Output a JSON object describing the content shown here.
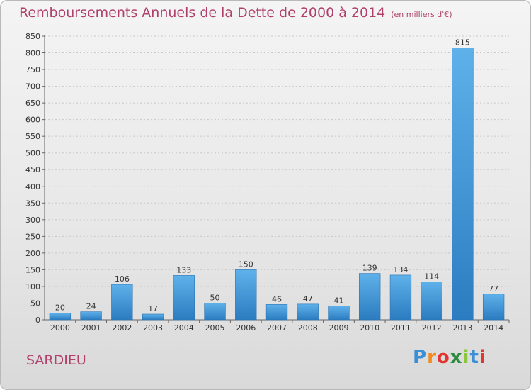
{
  "title": "Remboursements Annuels de la Dette de 2000 à 2014",
  "unit_note": "(en milliers d'€)",
  "commune": "SARDIEU",
  "logo": {
    "letters": [
      "P",
      "r",
      "o",
      "x",
      "i",
      "t",
      "i"
    ],
    "colors": [
      "#3a8fd6",
      "#f08a1c",
      "#e3342f",
      "#2e8b3d",
      "#8cc63f",
      "#3a8fd6",
      "#e3342f"
    ]
  },
  "chart_data": {
    "type": "bar",
    "title": "Remboursements Annuels de la Dette de 2000 à 2014",
    "xlabel": "",
    "ylabel": "",
    "categories": [
      "2000",
      "2001",
      "2002",
      "2003",
      "2004",
      "2005",
      "2006",
      "2007",
      "2008",
      "2009",
      "2010",
      "2011",
      "2012",
      "2013",
      "2014"
    ],
    "values": [
      20,
      24,
      106,
      17,
      133,
      50,
      150,
      46,
      47,
      41,
      139,
      134,
      114,
      815,
      77
    ],
    "ylim": [
      0,
      850
    ],
    "yticks": [
      0,
      50,
      100,
      150,
      200,
      250,
      300,
      350,
      400,
      450,
      500,
      550,
      600,
      650,
      700,
      750,
      800,
      850
    ],
    "grid": true,
    "legend": "none",
    "bar_color": "#3d97db"
  }
}
